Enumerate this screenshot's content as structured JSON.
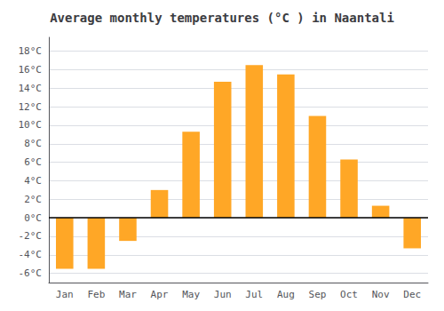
{
  "chart_data": {
    "type": "bar",
    "title": "Average monthly temperatures (°C ) in Naantali",
    "categories": [
      "Jan",
      "Feb",
      "Mar",
      "Apr",
      "May",
      "Jun",
      "Jul",
      "Aug",
      "Sep",
      "Oct",
      "Nov",
      "Dec"
    ],
    "values": [
      -5.5,
      -5.5,
      -2.5,
      3.0,
      9.3,
      14.7,
      16.5,
      15.5,
      11.0,
      6.3,
      1.3,
      -3.3
    ],
    "color": "#FFA726",
    "ylim": [
      -7.0,
      19.5
    ],
    "yticks": [
      {
        "value": -6,
        "label": "-6°C"
      },
      {
        "value": -4,
        "label": "-4°C"
      },
      {
        "value": -2,
        "label": "-2°C"
      },
      {
        "value": 0,
        "label": "0°C"
      },
      {
        "value": 2,
        "label": "2°C"
      },
      {
        "value": 4,
        "label": "4°C"
      },
      {
        "value": 6,
        "label": "6°C"
      },
      {
        "value": 8,
        "label": "8°C"
      },
      {
        "value": 10,
        "label": "10°C"
      },
      {
        "value": 12,
        "label": "12°C"
      },
      {
        "value": 14,
        "label": "14°C"
      },
      {
        "value": 16,
        "label": "16°C"
      },
      {
        "value": 18,
        "label": "18°C"
      }
    ],
    "grid": true
  }
}
